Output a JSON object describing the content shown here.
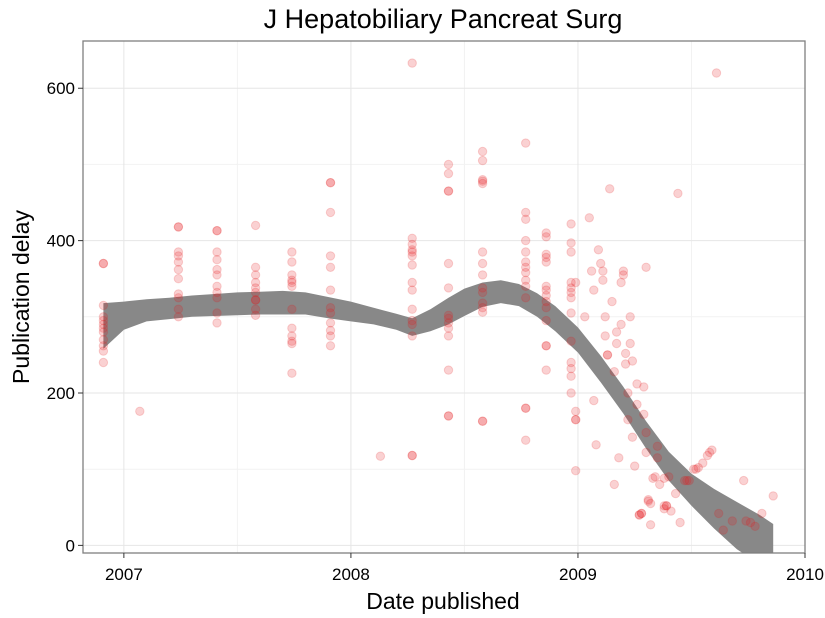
{
  "chart_data": {
    "type": "scatter",
    "title": "J Hepatobiliary Pancreat Surg",
    "xlabel": "Date published",
    "ylabel": "Publication delay",
    "xlim": [
      2006.82,
      2010.0
    ],
    "ylim": [
      -10,
      662
    ],
    "x_ticks": [
      2007,
      2008,
      2009,
      2010
    ],
    "x_tick_labels": [
      "2007",
      "2008",
      "2009",
      "2010"
    ],
    "y_ticks": [
      0,
      200,
      400,
      600
    ],
    "y_tick_labels": [
      "0",
      "200",
      "400",
      "600"
    ],
    "grid": true,
    "point_color": "#e41a1c",
    "point_opacity": 0.2,
    "smooth_color": "#888888",
    "points": [
      [
        2006.91,
        370
      ],
      [
        2006.91,
        370
      ],
      [
        2006.91,
        315
      ],
      [
        2006.91,
        300
      ],
      [
        2006.91,
        295
      ],
      [
        2006.91,
        290
      ],
      [
        2006.91,
        285
      ],
      [
        2006.91,
        280
      ],
      [
        2006.91,
        270
      ],
      [
        2006.91,
        262
      ],
      [
        2006.91,
        255
      ],
      [
        2006.91,
        240
      ],
      [
        2007.07,
        176
      ],
      [
        2007.24,
        418
      ],
      [
        2007.24,
        418
      ],
      [
        2007.24,
        385
      ],
      [
        2007.24,
        380
      ],
      [
        2007.24,
        372
      ],
      [
        2007.24,
        362
      ],
      [
        2007.24,
        350
      ],
      [
        2007.24,
        330
      ],
      [
        2007.24,
        325
      ],
      [
        2007.24,
        310
      ],
      [
        2007.24,
        300
      ],
      [
        2007.41,
        413
      ],
      [
        2007.41,
        413
      ],
      [
        2007.41,
        385
      ],
      [
        2007.41,
        375
      ],
      [
        2007.41,
        362
      ],
      [
        2007.41,
        355
      ],
      [
        2007.41,
        340
      ],
      [
        2007.41,
        332
      ],
      [
        2007.41,
        325
      ],
      [
        2007.41,
        305
      ],
      [
        2007.41,
        292
      ],
      [
        2007.58,
        420
      ],
      [
        2007.58,
        365
      ],
      [
        2007.58,
        355
      ],
      [
        2007.58,
        345
      ],
      [
        2007.58,
        338
      ],
      [
        2007.58,
        332
      ],
      [
        2007.58,
        322
      ],
      [
        2007.58,
        322
      ],
      [
        2007.58,
        310
      ],
      [
        2007.58,
        302
      ],
      [
        2007.74,
        385
      ],
      [
        2007.74,
        372
      ],
      [
        2007.74,
        355
      ],
      [
        2007.74,
        348
      ],
      [
        2007.74,
        345
      ],
      [
        2007.74,
        340
      ],
      [
        2007.74,
        310
      ],
      [
        2007.74,
        285
      ],
      [
        2007.74,
        275
      ],
      [
        2007.74,
        268
      ],
      [
        2007.74,
        265
      ],
      [
        2007.74,
        226
      ],
      [
        2007.91,
        476
      ],
      [
        2007.91,
        476
      ],
      [
        2007.91,
        437
      ],
      [
        2007.91,
        380
      ],
      [
        2007.91,
        365
      ],
      [
        2007.91,
        335
      ],
      [
        2007.91,
        312
      ],
      [
        2007.91,
        305
      ],
      [
        2007.91,
        292
      ],
      [
        2007.91,
        282
      ],
      [
        2007.91,
        275
      ],
      [
        2007.91,
        262
      ],
      [
        2008.13,
        117
      ],
      [
        2008.27,
        633
      ],
      [
        2008.27,
        403
      ],
      [
        2008.27,
        395
      ],
      [
        2008.27,
        388
      ],
      [
        2008.27,
        385
      ],
      [
        2008.27,
        380
      ],
      [
        2008.27,
        368
      ],
      [
        2008.27,
        345
      ],
      [
        2008.27,
        335
      ],
      [
        2008.27,
        310
      ],
      [
        2008.27,
        295
      ],
      [
        2008.27,
        290
      ],
      [
        2008.27,
        275
      ],
      [
        2008.27,
        118
      ],
      [
        2008.27,
        118
      ],
      [
        2008.43,
        500
      ],
      [
        2008.43,
        488
      ],
      [
        2008.43,
        465
      ],
      [
        2008.43,
        465
      ],
      [
        2008.43,
        370
      ],
      [
        2008.43,
        338
      ],
      [
        2008.43,
        302
      ],
      [
        2008.43,
        298
      ],
      [
        2008.43,
        292
      ],
      [
        2008.43,
        285
      ],
      [
        2008.43,
        275
      ],
      [
        2008.43,
        230
      ],
      [
        2008.43,
        170
      ],
      [
        2008.43,
        170
      ],
      [
        2008.58,
        517
      ],
      [
        2008.58,
        505
      ],
      [
        2008.58,
        480
      ],
      [
        2008.58,
        478
      ],
      [
        2008.58,
        475
      ],
      [
        2008.58,
        385
      ],
      [
        2008.58,
        370
      ],
      [
        2008.58,
        355
      ],
      [
        2008.58,
        338
      ],
      [
        2008.58,
        332
      ],
      [
        2008.58,
        318
      ],
      [
        2008.58,
        312
      ],
      [
        2008.58,
        306
      ],
      [
        2008.58,
        163
      ],
      [
        2008.58,
        163
      ],
      [
        2008.77,
        528
      ],
      [
        2008.77,
        437
      ],
      [
        2008.77,
        428
      ],
      [
        2008.77,
        400
      ],
      [
        2008.77,
        385
      ],
      [
        2008.77,
        372
      ],
      [
        2008.77,
        365
      ],
      [
        2008.77,
        358
      ],
      [
        2008.77,
        348
      ],
      [
        2008.77,
        340
      ],
      [
        2008.77,
        325
      ],
      [
        2008.77,
        180
      ],
      [
        2008.77,
        180
      ],
      [
        2008.77,
        138
      ],
      [
        2008.86,
        410
      ],
      [
        2008.86,
        405
      ],
      [
        2008.86,
        382
      ],
      [
        2008.86,
        378
      ],
      [
        2008.86,
        372
      ],
      [
        2008.86,
        340
      ],
      [
        2008.86,
        335
      ],
      [
        2008.86,
        328
      ],
      [
        2008.86,
        320
      ],
      [
        2008.86,
        312
      ],
      [
        2008.86,
        295
      ],
      [
        2008.86,
        262
      ],
      [
        2008.86,
        262
      ],
      [
        2008.86,
        230
      ],
      [
        2008.97,
        422
      ],
      [
        2008.97,
        397
      ],
      [
        2008.97,
        385
      ],
      [
        2008.97,
        345
      ],
      [
        2008.97,
        338
      ],
      [
        2008.97,
        332
      ],
      [
        2008.97,
        325
      ],
      [
        2008.97,
        305
      ],
      [
        2008.97,
        268
      ],
      [
        2008.97,
        240
      ],
      [
        2008.97,
        232
      ],
      [
        2008.97,
        222
      ],
      [
        2008.97,
        200
      ],
      [
        2008.99,
        345
      ],
      [
        2008.99,
        176
      ],
      [
        2008.99,
        165
      ],
      [
        2008.99,
        165
      ],
      [
        2008.99,
        98
      ],
      [
        2009.03,
        300
      ],
      [
        2009.05,
        430
      ],
      [
        2009.06,
        360
      ],
      [
        2009.07,
        335
      ],
      [
        2009.07,
        190
      ],
      [
        2009.08,
        132
      ],
      [
        2009.09,
        388
      ],
      [
        2009.1,
        370
      ],
      [
        2009.11,
        360
      ],
      [
        2009.11,
        348
      ],
      [
        2009.12,
        300
      ],
      [
        2009.12,
        275
      ],
      [
        2009.13,
        250
      ],
      [
        2009.13,
        250
      ],
      [
        2009.14,
        468
      ],
      [
        2009.15,
        320
      ],
      [
        2009.16,
        228
      ],
      [
        2009.16,
        80
      ],
      [
        2009.17,
        280
      ],
      [
        2009.17,
        265
      ],
      [
        2009.18,
        115
      ],
      [
        2009.19,
        345
      ],
      [
        2009.19,
        290
      ],
      [
        2009.2,
        360
      ],
      [
        2009.2,
        355
      ],
      [
        2009.21,
        252
      ],
      [
        2009.21,
        238
      ],
      [
        2009.22,
        200
      ],
      [
        2009.22,
        165
      ],
      [
        2009.23,
        300
      ],
      [
        2009.23,
        265
      ],
      [
        2009.24,
        242
      ],
      [
        2009.24,
        142
      ],
      [
        2009.25,
        104
      ],
      [
        2009.26,
        212
      ],
      [
        2009.26,
        185
      ],
      [
        2009.27,
        40
      ],
      [
        2009.27,
        40
      ],
      [
        2009.28,
        42
      ],
      [
        2009.28,
        42
      ],
      [
        2009.29,
        208
      ],
      [
        2009.29,
        172
      ],
      [
        2009.3,
        365
      ],
      [
        2009.3,
        148
      ],
      [
        2009.3,
        122
      ],
      [
        2009.31,
        60
      ],
      [
        2009.31,
        58
      ],
      [
        2009.32,
        55
      ],
      [
        2009.32,
        27
      ],
      [
        2009.33,
        88
      ],
      [
        2009.34,
        90
      ],
      [
        2009.35,
        130
      ],
      [
        2009.35,
        115
      ],
      [
        2009.36,
        80
      ],
      [
        2009.38,
        88
      ],
      [
        2009.38,
        52
      ],
      [
        2009.38,
        48
      ],
      [
        2009.39,
        52
      ],
      [
        2009.39,
        52
      ],
      [
        2009.4,
        90
      ],
      [
        2009.41,
        45
      ],
      [
        2009.43,
        68
      ],
      [
        2009.44,
        462
      ],
      [
        2009.45,
        30
      ],
      [
        2009.47,
        85
      ],
      [
        2009.48,
        85
      ],
      [
        2009.49,
        85
      ],
      [
        2009.51,
        100
      ],
      [
        2009.52,
        100
      ],
      [
        2009.53,
        102
      ],
      [
        2009.55,
        108
      ],
      [
        2009.57,
        118
      ],
      [
        2009.58,
        122
      ],
      [
        2009.59,
        125
      ],
      [
        2009.61,
        620
      ],
      [
        2009.62,
        42
      ],
      [
        2009.64,
        20
      ],
      [
        2009.68,
        32
      ],
      [
        2009.73,
        85
      ],
      [
        2009.74,
        32
      ],
      [
        2009.76,
        30
      ],
      [
        2009.78,
        25
      ],
      [
        2009.81,
        42
      ],
      [
        2009.86,
        65
      ]
    ],
    "smooth_x": [
      2006.91,
      2007.0,
      2007.1,
      2007.2,
      2007.3,
      2007.4,
      2007.5,
      2007.6,
      2007.7,
      2007.8,
      2007.9,
      2008.0,
      2008.1,
      2008.2,
      2008.27,
      2008.35,
      2008.43,
      2008.5,
      2008.58,
      2008.66,
      2008.74,
      2008.82,
      2008.9,
      2009.0,
      2009.1,
      2009.2,
      2009.3,
      2009.4,
      2009.5,
      2009.6,
      2009.7,
      2009.8,
      2009.86
    ],
    "smooth_lo": [
      258,
      283,
      294,
      297,
      300,
      301,
      302,
      303,
      303,
      303,
      298,
      294,
      290,
      283,
      275,
      281,
      290,
      301,
      313,
      318,
      314,
      300,
      281,
      253,
      214,
      173,
      127,
      85,
      52,
      22,
      -5,
      -25,
      -40
    ],
    "smooth_hi": [
      318,
      320,
      323,
      325,
      328,
      330,
      332,
      333,
      334,
      332,
      326,
      320,
      312,
      304,
      298,
      310,
      325,
      337,
      345,
      348,
      343,
      331,
      314,
      286,
      249,
      208,
      163,
      123,
      94,
      74,
      57,
      40,
      28
    ]
  }
}
